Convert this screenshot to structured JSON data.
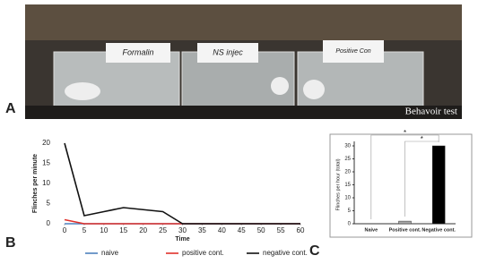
{
  "panels": [
    "A",
    "B",
    "C"
  ],
  "photo": {
    "caption": "Behavoir test",
    "cards": [
      "Formalin",
      "NS injec",
      "Positive Con"
    ]
  },
  "chart_data": [
    {
      "type": "line",
      "y_label": "Flinches per minute",
      "x_label": "Time",
      "x": [
        0,
        5,
        10,
        15,
        20,
        25,
        30,
        35,
        40,
        45,
        50,
        55,
        60
      ],
      "xlim": [
        0,
        60
      ],
      "xticks": [
        0,
        5,
        10,
        15,
        20,
        25,
        30,
        35,
        40,
        45,
        50,
        55,
        60
      ],
      "ylim": [
        0,
        20
      ],
      "yticks": [
        0,
        5,
        10,
        15,
        20
      ],
      "series": [
        {
          "name": "naive",
          "color": "#4f81bd",
          "values": [
            0,
            0,
            0,
            0,
            0,
            0,
            0,
            0,
            0,
            0,
            0,
            0,
            0
          ]
        },
        {
          "name": "positive cont.",
          "color": "#e0302a",
          "values": [
            1,
            0,
            0,
            0,
            0,
            0,
            0,
            0,
            0,
            0,
            0,
            0,
            0
          ]
        },
        {
          "name": "negative cont.",
          "color": "#111111",
          "values": [
            20,
            2,
            3,
            4,
            3.5,
            3,
            0,
            0,
            0,
            0,
            0,
            0,
            0
          ]
        }
      ]
    },
    {
      "type": "bar",
      "y_label": "Flinches per hour (total)",
      "categories": [
        "Naive",
        "Positive cont.",
        "Negative cont."
      ],
      "values": [
        0,
        1,
        30
      ],
      "colors": [
        "#ffffff",
        "#a8a8a8",
        "#000000"
      ],
      "ylim": [
        0,
        30
      ],
      "yticks": [
        0,
        5,
        10,
        15,
        20,
        25,
        30
      ],
      "annotations": [
        "*",
        "*"
      ]
    }
  ]
}
